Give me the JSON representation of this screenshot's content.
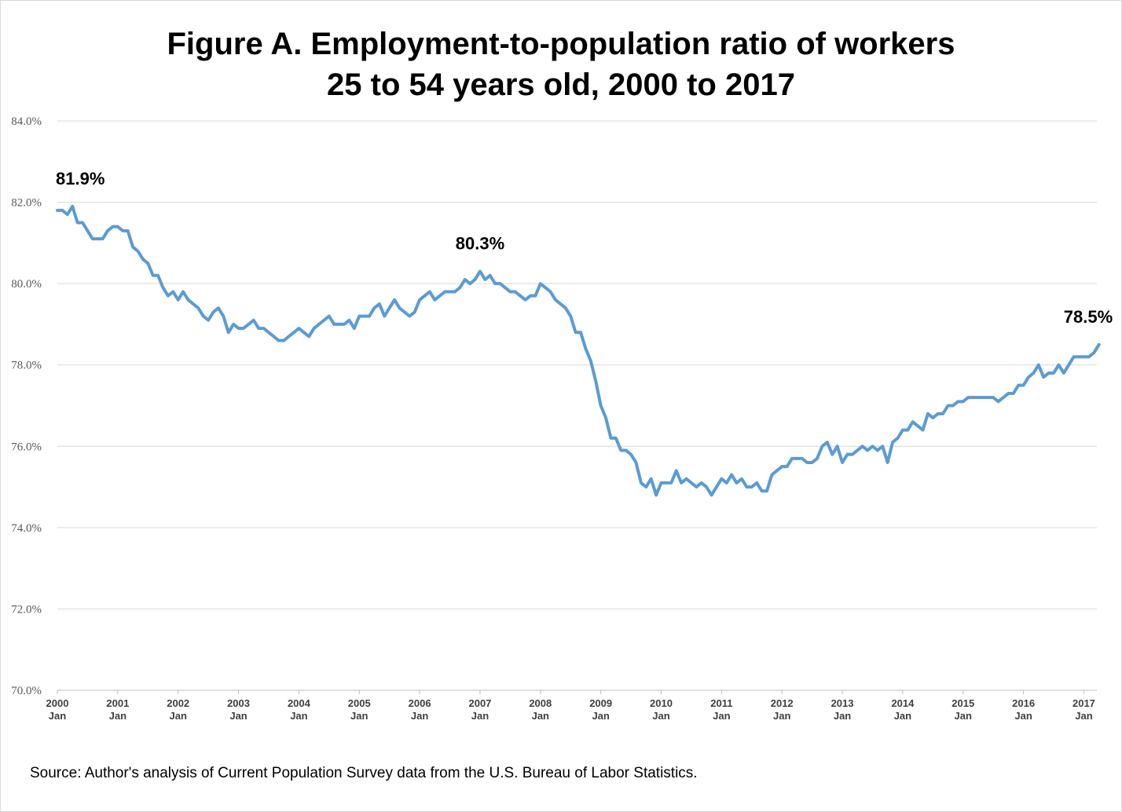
{
  "chart_data": {
    "type": "line",
    "title_line1": "Figure A. Employment-to-population ratio of workers",
    "title_line2": "25 to 54 years old, 2000 to 2017",
    "source": "Source:  Author's analysis of Current Population Survey data from the U.S. Bureau of Labor Statistics.",
    "ylim": [
      70.0,
      84.0
    ],
    "yticks": [
      "70.0%",
      "72.0%",
      "74.0%",
      "76.0%",
      "78.0%",
      "80.0%",
      "82.0%",
      "84.0%"
    ],
    "xticks": [
      {
        "year": "2000",
        "month": "Jan"
      },
      {
        "year": "2001",
        "month": "Jan"
      },
      {
        "year": "2002",
        "month": "Jan"
      },
      {
        "year": "2003",
        "month": "Jan"
      },
      {
        "year": "2004",
        "month": "Jan"
      },
      {
        "year": "2005",
        "month": "Jan"
      },
      {
        "year": "2006",
        "month": "Jan"
      },
      {
        "year": "2007",
        "month": "Jan"
      },
      {
        "year": "2008",
        "month": "Jan"
      },
      {
        "year": "2009",
        "month": "Jan"
      },
      {
        "year": "2010",
        "month": "Jan"
      },
      {
        "year": "2011",
        "month": "Jan"
      },
      {
        "year": "2012",
        "month": "Jan"
      },
      {
        "year": "2013",
        "month": "Jan"
      },
      {
        "year": "2014",
        "month": "Jan"
      },
      {
        "year": "2015",
        "month": "Jan"
      },
      {
        "year": "2016",
        "month": "Jan"
      },
      {
        "year": "2017",
        "month": "Jan"
      }
    ],
    "grid": true,
    "line_color": "#5b9bd5",
    "series": [
      {
        "start": "2000-01",
        "frequency": "monthly",
        "values": [
          81.8,
          81.8,
          81.7,
          81.9,
          81.5,
          81.5,
          81.3,
          81.1,
          81.1,
          81.1,
          81.3,
          81.4,
          81.4,
          81.3,
          81.3,
          80.9,
          80.8,
          80.6,
          80.5,
          80.2,
          80.2,
          79.9,
          79.7,
          79.8,
          79.6,
          79.8,
          79.6,
          79.5,
          79.4,
          79.2,
          79.1,
          79.3,
          79.4,
          79.2,
          78.8,
          79.0,
          78.9,
          78.9,
          79.0,
          79.1,
          78.9,
          78.9,
          78.8,
          78.7,
          78.6,
          78.6,
          78.7,
          78.8,
          78.9,
          78.8,
          78.7,
          78.9,
          79.0,
          79.1,
          79.2,
          79.0,
          79.0,
          79.0,
          79.1,
          78.9,
          79.2,
          79.2,
          79.2,
          79.4,
          79.5,
          79.2,
          79.4,
          79.6,
          79.4,
          79.3,
          79.2,
          79.3,
          79.6,
          79.7,
          79.8,
          79.6,
          79.7,
          79.8,
          79.8,
          79.8,
          79.9,
          80.1,
          80.0,
          80.1,
          80.3,
          80.1,
          80.2,
          80.0,
          80.0,
          79.9,
          79.8,
          79.8,
          79.7,
          79.6,
          79.7,
          79.7,
          80.0,
          79.9,
          79.8,
          79.6,
          79.5,
          79.4,
          79.2,
          78.8,
          78.8,
          78.4,
          78.1,
          77.6,
          77.0,
          76.7,
          76.2,
          76.2,
          75.9,
          75.9,
          75.8,
          75.6,
          75.1,
          75.0,
          75.2,
          74.8,
          75.1,
          75.1,
          75.1,
          75.4,
          75.1,
          75.2,
          75.1,
          75.0,
          75.1,
          75.0,
          74.8,
          75.0,
          75.2,
          75.1,
          75.3,
          75.1,
          75.2,
          75.0,
          75.0,
          75.1,
          74.9,
          74.9,
          75.3,
          75.4,
          75.5,
          75.5,
          75.7,
          75.7,
          75.7,
          75.6,
          75.6,
          75.7,
          76.0,
          76.1,
          75.8,
          76.0,
          75.6,
          75.8,
          75.8,
          75.9,
          76.0,
          75.9,
          76.0,
          75.9,
          76.0,
          75.6,
          76.1,
          76.2,
          76.4,
          76.4,
          76.6,
          76.5,
          76.4,
          76.8,
          76.7,
          76.8,
          76.8,
          77.0,
          77.0,
          77.1,
          77.1,
          77.2,
          77.2,
          77.2,
          77.2,
          77.2,
          77.2,
          77.1,
          77.2,
          77.3,
          77.3,
          77.5,
          77.5,
          77.7,
          77.8,
          78.0,
          77.7,
          77.8,
          77.8,
          78.0,
          77.8,
          78.0,
          78.2,
          78.2,
          78.2,
          78.2,
          78.3,
          78.5
        ]
      }
    ],
    "annotations": [
      {
        "text": "81.9%",
        "index": 3,
        "value": 81.9
      },
      {
        "text": "80.3%",
        "index": 84,
        "value": 80.3
      },
      {
        "text": "78.5%",
        "index": 207,
        "value": 78.5
      }
    ]
  }
}
